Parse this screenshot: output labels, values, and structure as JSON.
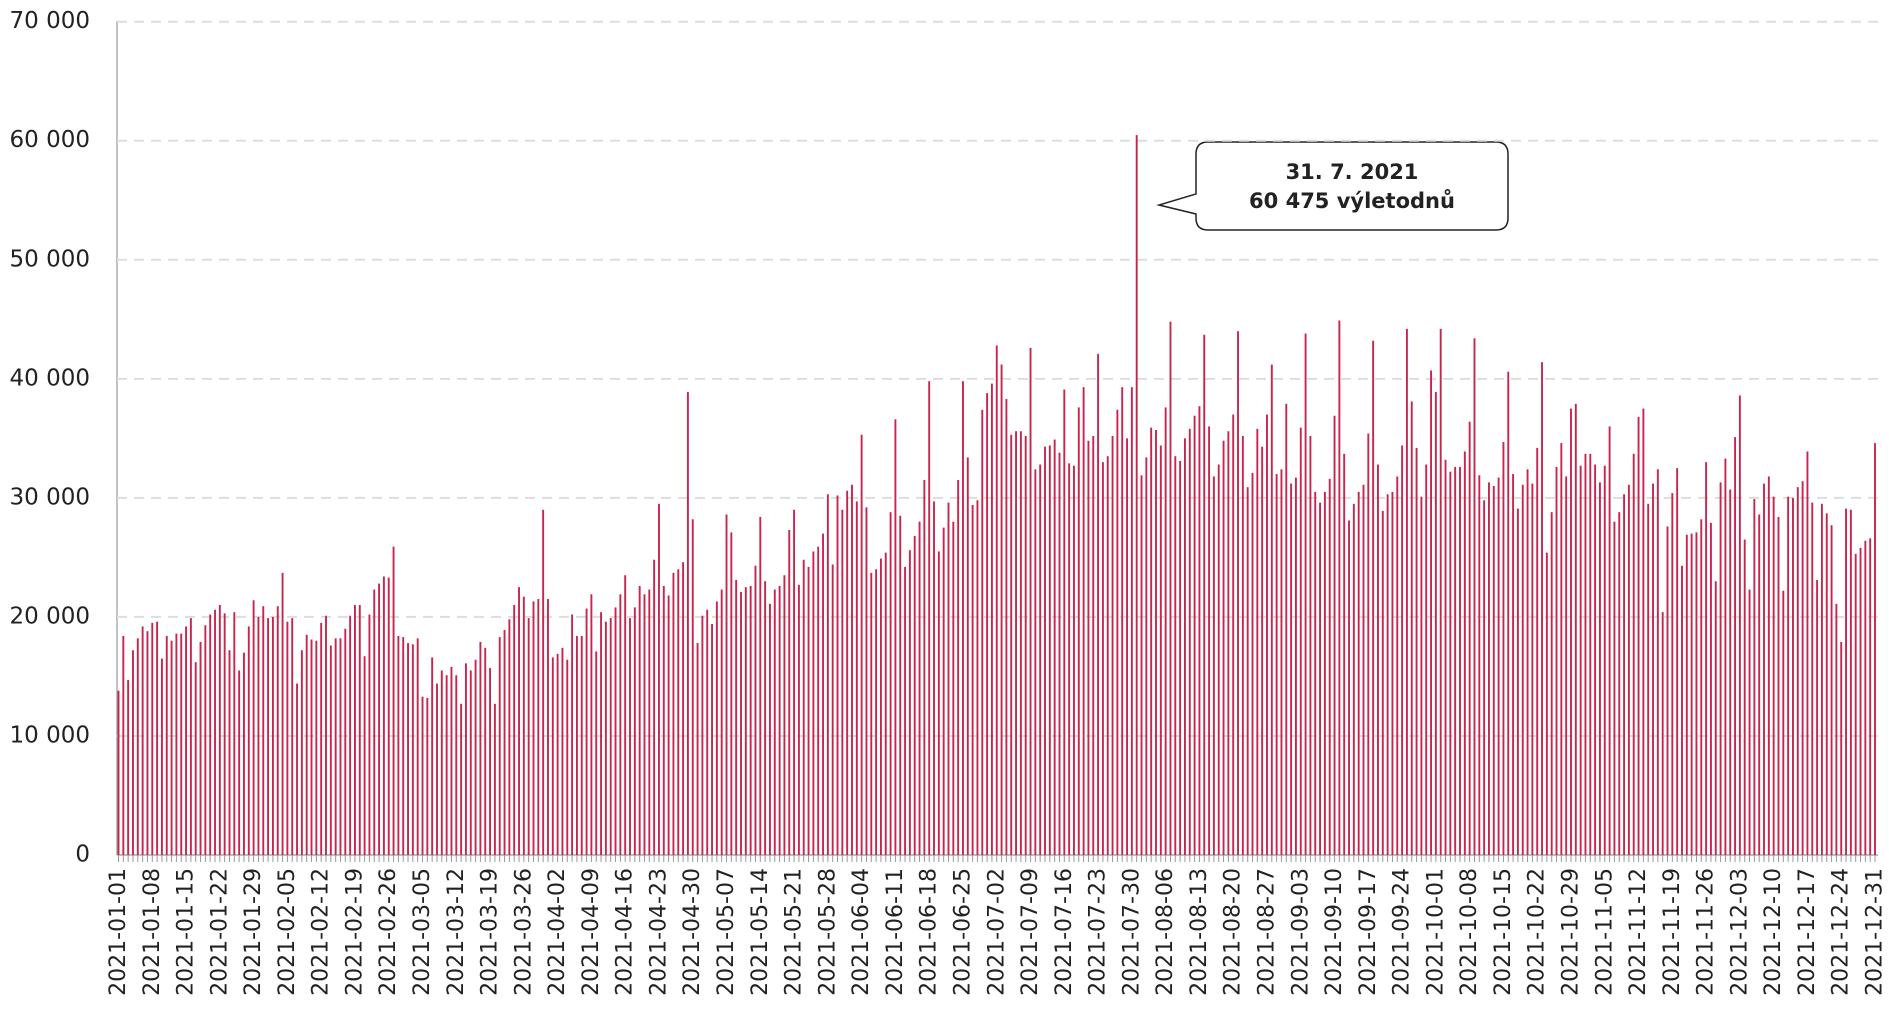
{
  "chart_data": {
    "type": "bar",
    "color": "#c7254e",
    "grid": true,
    "ylim": [
      0,
      70000
    ],
    "yticks": [
      0,
      {
        "value": 10000,
        "label": "10 000"
      },
      {
        "value": 20000,
        "label": "20 000"
      },
      {
        "value": 30000,
        "label": "30 000"
      },
      {
        "value": 40000,
        "label": "40 000"
      },
      {
        "value": 50000,
        "label": "50 000"
      },
      {
        "value": 60000,
        "label": "60 000"
      },
      {
        "value": 70000,
        "label": "70 000"
      }
    ],
    "annotation": {
      "lines": [
        "31. 7. 2021",
        "60 475 výletodnů"
      ]
    },
    "categories": [
      "2021-01-01",
      null,
      null,
      null,
      null,
      null,
      null,
      "2021-01-08",
      null,
      null,
      null,
      null,
      null,
      null,
      "2021-01-15",
      null,
      null,
      null,
      null,
      null,
      null,
      "2021-01-22",
      null,
      null,
      null,
      null,
      null,
      null,
      "2021-01-29",
      null,
      null,
      null,
      null,
      null,
      null,
      "2021-02-05",
      null,
      null,
      null,
      null,
      null,
      null,
      "2021-02-12",
      null,
      null,
      null,
      null,
      null,
      null,
      "2021-02-19",
      null,
      null,
      null,
      null,
      null,
      null,
      "2021-02-26",
      null,
      null,
      null,
      null,
      null,
      null,
      "2021-03-05",
      null,
      null,
      null,
      null,
      null,
      null,
      "2021-03-12",
      null,
      null,
      null,
      null,
      null,
      null,
      "2021-03-19",
      null,
      null,
      null,
      null,
      null,
      null,
      "2021-03-26",
      null,
      null,
      null,
      null,
      null,
      null,
      "2021-04-02",
      null,
      null,
      null,
      null,
      null,
      null,
      "2021-04-09",
      null,
      null,
      null,
      null,
      null,
      null,
      "2021-04-16",
      null,
      null,
      null,
      null,
      null,
      null,
      "2021-04-23",
      null,
      null,
      null,
      null,
      null,
      null,
      "2021-04-30",
      null,
      null,
      null,
      null,
      null,
      null,
      "2021-05-07",
      null,
      null,
      null,
      null,
      null,
      null,
      "2021-05-14",
      null,
      null,
      null,
      null,
      null,
      null,
      "2021-05-21",
      null,
      null,
      null,
      null,
      null,
      null,
      "2021-05-28",
      null,
      null,
      null,
      null,
      null,
      null,
      "2021-06-04",
      null,
      null,
      null,
      null,
      null,
      null,
      "2021-06-11",
      null,
      null,
      null,
      null,
      null,
      null,
      "2021-06-18",
      null,
      null,
      null,
      null,
      null,
      null,
      "2021-06-25",
      null,
      null,
      null,
      null,
      null,
      null,
      "2021-07-02",
      null,
      null,
      null,
      null,
      null,
      null,
      "2021-07-09",
      null,
      null,
      null,
      null,
      null,
      null,
      "2021-07-16",
      null,
      null,
      null,
      null,
      null,
      null,
      "2021-07-23",
      null,
      null,
      null,
      null,
      null,
      null,
      "2021-07-30",
      null,
      null,
      null,
      null,
      null,
      null,
      "2021-08-06",
      null,
      null,
      null,
      null,
      null,
      null,
      "2021-08-13",
      null,
      null,
      null,
      null,
      null,
      null,
      "2021-08-20",
      null,
      null,
      null,
      null,
      null,
      null,
      "2021-08-27",
      null,
      null,
      null,
      null,
      null,
      null,
      "2021-09-03",
      null,
      null,
      null,
      null,
      null,
      null,
      "2021-09-10",
      null,
      null,
      null,
      null,
      null,
      null,
      "2021-09-17",
      null,
      null,
      null,
      null,
      null,
      null,
      "2021-09-24",
      null,
      null,
      null,
      null,
      null,
      null,
      "2021-10-01",
      null,
      null,
      null,
      null,
      null,
      null,
      "2021-10-08",
      null,
      null,
      null,
      null,
      null,
      null,
      "2021-10-15",
      null,
      null,
      null,
      null,
      null,
      null,
      "2021-10-22",
      null,
      null,
      null,
      null,
      null,
      null,
      "2021-10-29",
      null,
      null,
      null,
      null,
      null,
      null,
      "2021-11-05",
      null,
      null,
      null,
      null,
      null,
      null,
      "2021-11-12",
      null,
      null,
      null,
      null,
      null,
      null,
      "2021-11-19",
      null,
      null,
      null,
      null,
      null,
      null,
      "2021-11-26",
      null,
      null,
      null,
      null,
      null,
      null,
      "2021-12-03",
      null,
      null,
      null,
      null,
      null,
      null,
      "2021-12-10",
      null,
      null,
      null,
      null,
      null,
      null,
      "2021-12-17",
      null,
      null,
      null,
      null,
      null,
      null,
      "2021-12-24",
      null,
      null,
      null,
      null,
      null,
      null,
      "2021-12-31"
    ],
    "values": [
      13800,
      18400,
      14700,
      17200,
      18200,
      19200,
      18800,
      19500,
      19600,
      16500,
      18400,
      18000,
      18600,
      18600,
      19200,
      19900,
      16200,
      17900,
      19300,
      20200,
      20600,
      21000,
      20300,
      17200,
      20400,
      15500,
      17000,
      19200,
      21400,
      20000,
      20900,
      19900,
      20000,
      20900,
      23700,
      19600,
      19900,
      14400,
      17200,
      18500,
      18100,
      18000,
      19500,
      20100,
      17600,
      18200,
      18200,
      19000,
      20100,
      21000,
      21000,
      16700,
      20200,
      22300,
      22800,
      23400,
      23300,
      25900,
      18400,
      18300,
      17800,
      17700,
      18200,
      13300,
      13200,
      16600,
      14400,
      15500,
      15100,
      15800,
      15100,
      12700,
      16100,
      15500,
      16400,
      17900,
      17400,
      15700,
      12700,
      18300,
      18900,
      19800,
      21000,
      22500,
      21700,
      19900,
      21300,
      21500,
      29000,
      21500,
      16600,
      16900,
      17400,
      16400,
      20200,
      18400,
      18400,
      20700,
      21900,
      17100,
      20400,
      19600,
      19900,
      20800,
      21900,
      23500,
      19900,
      20800,
      22600,
      21900,
      22300,
      24800,
      29500,
      22600,
      21800,
      23700,
      24000,
      24600,
      38900,
      28200,
      17800,
      20100,
      20600,
      19400,
      21300,
      22300,
      28600,
      27100,
      23100,
      22100,
      22500,
      22600,
      24300,
      28400,
      23000,
      21100,
      22300,
      22600,
      23500,
      27300,
      29000,
      22700,
      24800,
      24200,
      25500,
      25900,
      27000,
      30300,
      24400,
      30200,
      29000,
      30600,
      31100,
      29700,
      35300,
      29200,
      23700,
      24000,
      24900,
      25400,
      28800,
      36600,
      28500,
      24200,
      25600,
      26800,
      28000,
      31500,
      39800,
      29700,
      25500,
      27500,
      29600,
      28000,
      31500,
      39800,
      33400,
      29400,
      29800,
      37400,
      38800,
      39600,
      42800,
      41200,
      38300,
      35300,
      35600,
      35600,
      35200,
      42600,
      32400,
      32800,
      34300,
      34400,
      34900,
      33800,
      39100,
      32900,
      32700,
      37600,
      39300,
      34800,
      35200,
      42100,
      33000,
      33500,
      35200,
      37400,
      39300,
      35000,
      39300,
      60475,
      31900,
      33400,
      35900,
      35700,
      34400,
      37600,
      44800,
      33500,
      33100,
      35000,
      35800,
      36900,
      37700,
      43700,
      36000,
      31800,
      32800,
      34800,
      35600,
      37000,
      44000,
      35200,
      30900,
      32100,
      35800,
      34300,
      37000,
      41200,
      32000,
      32400,
      37900,
      31200,
      31700,
      35900,
      43800,
      35200,
      30500,
      29600,
      30500,
      31600,
      36900,
      44900,
      33700,
      28100,
      29500,
      30500,
      31100,
      35400,
      43200,
      32800,
      28900,
      30300,
      30500,
      31800,
      34400,
      44200,
      38100,
      34200,
      30100,
      32800,
      40700,
      38900,
      44200,
      33200,
      32200,
      32600,
      32600,
      33900,
      36400,
      43400,
      31900,
      29800,
      31300,
      31000,
      31700,
      34700,
      40600,
      32000,
      29100,
      31100,
      32400,
      31200,
      34200,
      41400,
      25400,
      28800,
      32600,
      34600,
      31800,
      37500,
      37900,
      32700,
      33700,
      33700,
      32800,
      31300,
      32700,
      36000,
      28000,
      28800,
      30300,
      31100,
      33700,
      36800,
      37500,
      29500,
      31200,
      32400,
      20400,
      27600,
      30400,
      32500,
      24300,
      26900,
      27000,
      27100,
      28200,
      33000,
      27900,
      23000,
      31300,
      33300,
      30700,
      35100,
      38600,
      26500,
      22300,
      29900,
      28600,
      31200,
      31800,
      30100,
      28400,
      22200,
      30100,
      30000,
      30900,
      31400,
      33900,
      29600,
      23100,
      29500,
      28700,
      27700,
      21100,
      17900,
      29100,
      29000,
      25300,
      25800,
      26400,
      26600,
      34600
    ]
  }
}
